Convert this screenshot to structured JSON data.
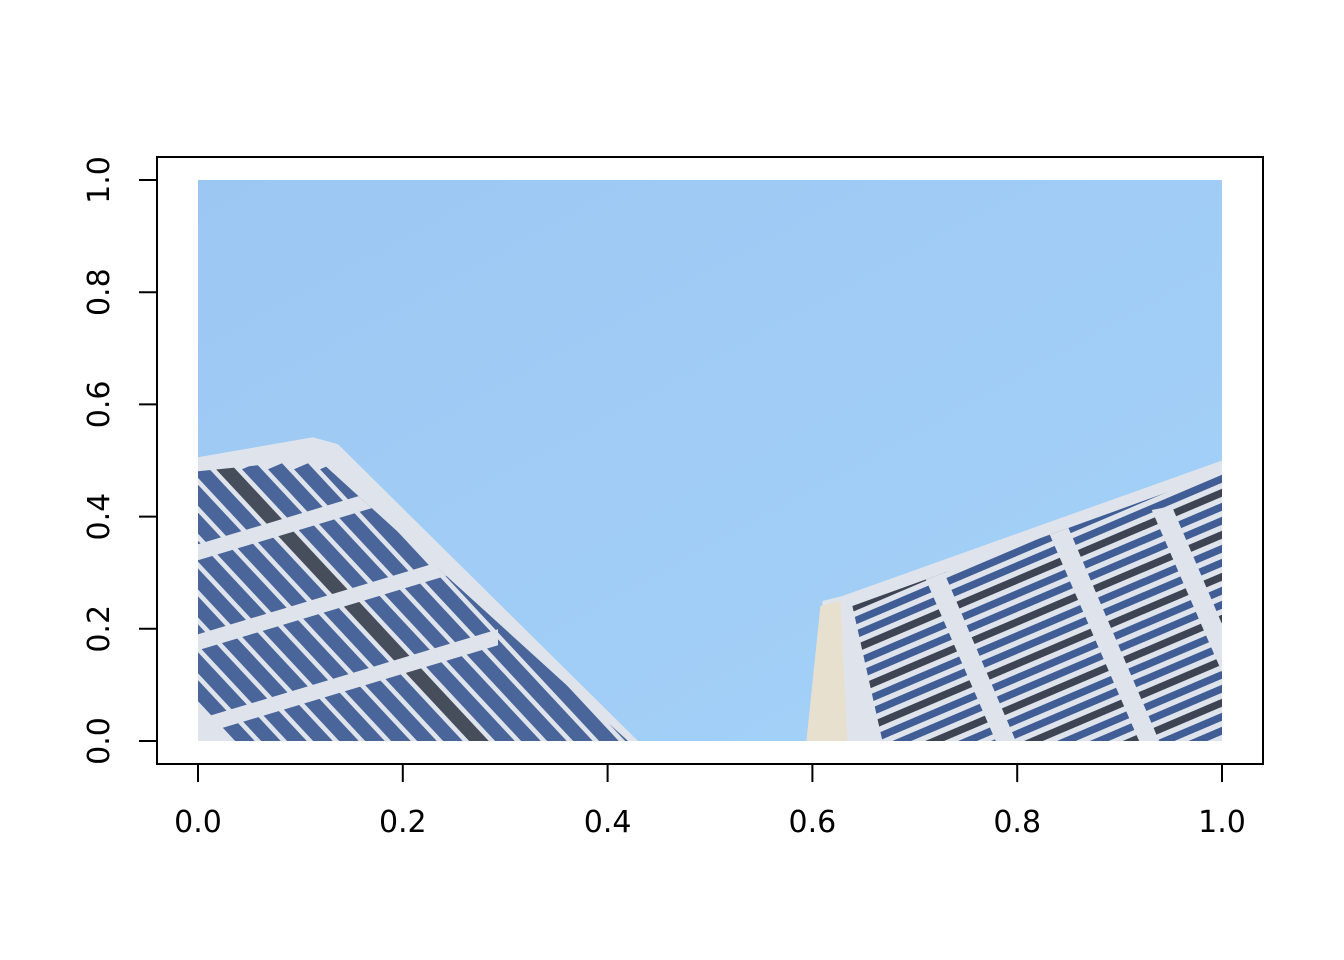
{
  "chart_data": {
    "type": "image",
    "title": "",
    "xlabel": "",
    "ylabel": "",
    "xlim": [
      0,
      1
    ],
    "ylim": [
      0,
      1
    ],
    "x_ticks": [
      0.0,
      0.2,
      0.4,
      0.6,
      0.8,
      1.0
    ],
    "y_ticks": [
      0.0,
      0.2,
      0.4,
      0.6,
      0.8,
      1.0
    ],
    "x_tick_labels": [
      "0.0",
      "0.2",
      "0.4",
      "0.6",
      "0.8",
      "1.0"
    ],
    "y_tick_labels": [
      "0.0",
      "0.2",
      "0.4",
      "0.6",
      "0.8",
      "1.0"
    ],
    "image": {
      "extent": [
        0,
        1,
        0,
        1
      ],
      "subject": "two glass office towers photographed from below against a clear blue sky",
      "left_building_top": 0.52,
      "left_building_bottom_right_x": 0.42,
      "right_building_top": 0.5,
      "right_building_left_x": 0.6
    },
    "grid": false,
    "colors": {
      "sky_light": "#a7d3f6",
      "sky_dark": "#8dbbee",
      "facade": "#dfe4ec",
      "glass": "#2f4f8c",
      "glass_dark": "#2b3242"
    }
  }
}
